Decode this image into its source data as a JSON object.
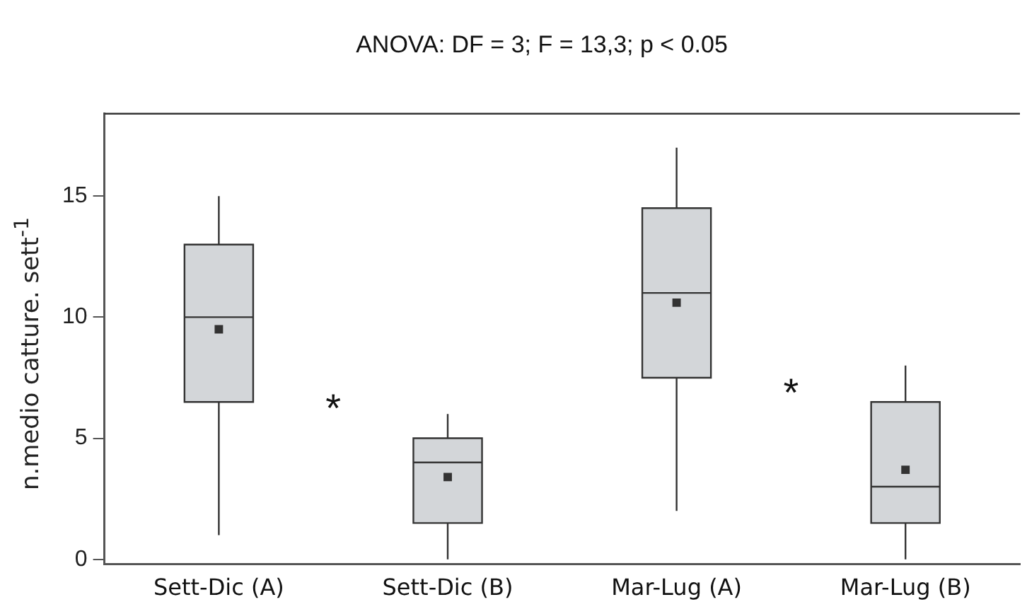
{
  "chart_data": {
    "type": "box",
    "title": "ANOVA: DF = 3; F = 13,3; p < 0.05",
    "ylabel": "n.medio catture. sett$^{-1}$",
    "categories": [
      "Sett-Dic (A)",
      "Sett-Dic (B)",
      "Mar-Lug (A)",
      "Mar-Lug (B)"
    ],
    "boxes": [
      {
        "low": 1,
        "q1": 6.5,
        "median": 10,
        "q3": 13,
        "high": 15,
        "mean": 9.5
      },
      {
        "low": 0,
        "q1": 1.5,
        "median": 4,
        "q3": 5,
        "high": 6,
        "mean": 3.4
      },
      {
        "low": 2,
        "q1": 7.5,
        "median": 11,
        "q3": 14.5,
        "high": 17,
        "mean": 10.6
      },
      {
        "low": 0,
        "q1": 1.5,
        "median": 3,
        "q3": 6.5,
        "high": 8,
        "mean": 3.7
      }
    ],
    "color": "#d3d6d9",
    "ylim": [
      -0.2,
      18.4
    ],
    "yticks": [
      0,
      5,
      10,
      15
    ],
    "grid": false,
    "legend": false,
    "annotations": [
      "*",
      "*"
    ]
  }
}
